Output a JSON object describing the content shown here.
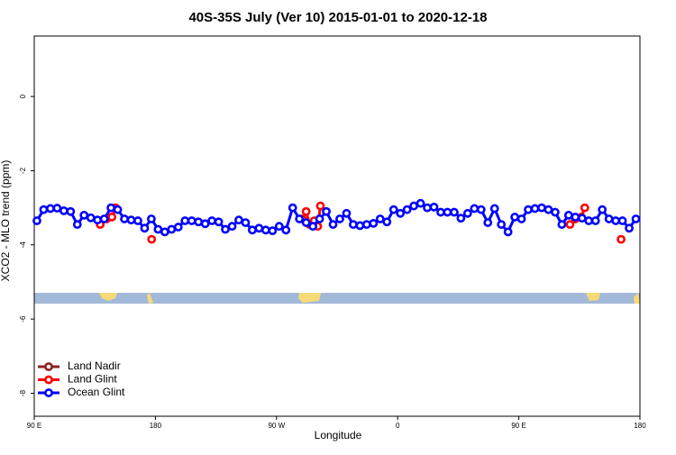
{
  "chart_data": {
    "type": "line",
    "title": "40S-35S July (Ver 10)   2015-01-01 to 2020-12-18",
    "x_label": "Longitude",
    "y_label": "XCO2 - MLO trend (ppm)",
    "xlim": [
      90,
      540
    ],
    "xticks": [
      {
        "value": 90,
        "label": "90 E"
      },
      180,
      {
        "value": 270,
        "label": "90 W"
      },
      {
        "value": 360,
        "label": "0"
      },
      {
        "value": 450,
        "label": "90 E"
      },
      {
        "value": 540,
        "label": "180"
      }
    ],
    "ylim": [
      -8.62,
      1.63
    ],
    "yticks": [
      0,
      -2,
      -4,
      -6,
      -8
    ],
    "legend": "bottom-left",
    "series": [
      {
        "name": "Land Nadir",
        "color": "#8b2323",
        "x": [],
        "values": []
      },
      {
        "name": "Land Glint",
        "color": "#ff0000",
        "x": [
          139,
          143.7,
          147.7,
          150.4,
          160,
          177.2,
          230,
          289,
          292,
          294.6,
          298,
          300.6,
          302.6,
          400,
          488,
          492,
          496.5,
          499,
          510,
          526
        ],
        "values": [
          -3.45,
          -3.3,
          -3.25,
          -3.0,
          null,
          -3.85,
          null,
          -3.3,
          -3.1,
          -3.45,
          -3.35,
          -3.5,
          -2.95,
          null,
          -3.45,
          -3.3,
          -3.25,
          -3.0,
          null,
          -3.85
        ]
      },
      {
        "name": "Ocean Glint",
        "color": "#0000ff",
        "x": [
          92,
          97,
          102,
          107,
          112,
          117,
          122,
          127,
          132,
          137,
          142,
          147,
          152,
          157,
          162,
          167,
          172,
          177,
          182,
          187,
          192,
          197,
          202,
          207,
          212,
          217,
          222,
          227,
          232,
          237,
          242,
          247,
          252,
          257,
          262,
          267,
          272,
          277,
          282,
          287,
          292,
          297,
          302,
          307,
          312,
          317,
          322,
          327,
          332,
          337,
          342,
          347,
          352,
          357,
          362,
          367,
          372,
          377,
          382,
          387,
          392,
          397,
          402,
          407,
          412,
          417,
          422,
          427,
          432,
          437,
          442,
          447,
          452,
          457,
          462,
          467,
          472,
          477,
          482,
          487,
          492,
          497,
          502,
          507,
          512,
          517,
          522,
          527,
          532,
          537
        ],
        "values": [
          -3.35,
          -3.05,
          -3.02,
          -3.01,
          -3.08,
          -3.1,
          -3.45,
          -3.2,
          -3.27,
          -3.33,
          -3.3,
          -3.0,
          -3.05,
          -3.3,
          -3.33,
          -3.35,
          -3.55,
          -3.3,
          -3.58,
          -3.65,
          -3.58,
          -3.52,
          -3.35,
          -3.35,
          -3.38,
          -3.43,
          -3.35,
          -3.38,
          -3.58,
          -3.5,
          -3.33,
          -3.4,
          -3.6,
          -3.55,
          -3.6,
          -3.62,
          -3.5,
          -3.6,
          -3.0,
          -3.3,
          -3.4,
          -3.5,
          -3.3,
          -3.1,
          -3.45,
          -3.3,
          -3.15,
          -3.45,
          -3.48,
          -3.45,
          -3.42,
          -3.3,
          -3.38,
          -3.05,
          -3.15,
          -3.05,
          -2.95,
          -2.88,
          -3.0,
          -2.98,
          -3.12,
          -3.12,
          -3.12,
          -3.28,
          -3.15,
          -3.02,
          -3.05,
          -3.4,
          -3.02,
          -3.45,
          -3.65,
          -3.25,
          -3.3,
          -3.05,
          -3.02,
          -3.0,
          -3.05,
          -3.12,
          -3.45,
          -3.2,
          -3.25,
          -3.28,
          -3.35,
          -3.35,
          -3.05,
          -3.3,
          -3.35,
          -3.35,
          -3.55,
          -3.3
        ]
      }
    ]
  }
}
